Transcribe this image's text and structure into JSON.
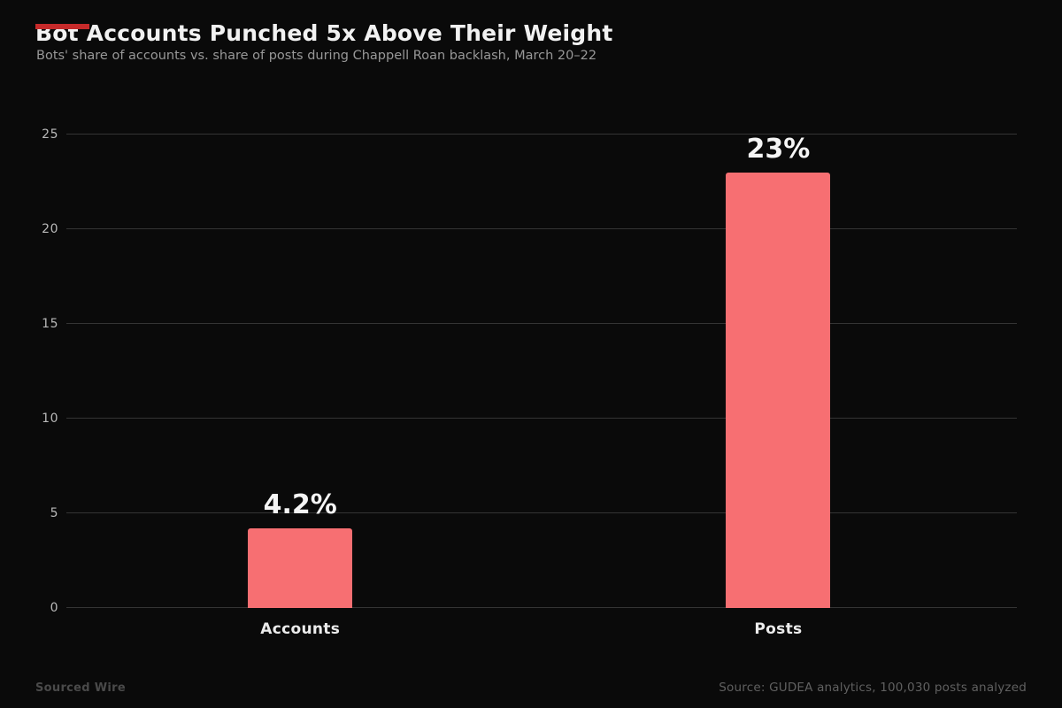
{
  "header": {
    "title": "Bot Accounts Punched 5x Above Their Weight",
    "subtitle": "Bots' share of accounts vs. share of posts during Chappell Roan backlash, March 20–22"
  },
  "footer": {
    "brand": "Sourced Wire",
    "source": "Source: GUDEA analytics, 100,030 posts analyzed"
  },
  "colors": {
    "background": "#0a0a0a",
    "bar": "#f76f72",
    "accent_stripe": "#c62a2a",
    "gridline": "#343434",
    "tick_text": "#b9b9b9",
    "value_text": "#f5f5f5"
  },
  "chart_data": {
    "type": "bar",
    "title": "Bot Accounts Punched 5x Above Their Weight",
    "subtitle": "Bots' share of accounts vs. share of posts during Chappell Roan backlash, March 20–22",
    "categories": [
      "Accounts",
      "Posts"
    ],
    "values": [
      4.2,
      23
    ],
    "value_labels": [
      "4.2%",
      "23%"
    ],
    "xlabel": "",
    "ylabel": "",
    "ylim": [
      0,
      25
    ],
    "yticks": [
      0,
      5,
      10,
      15,
      20,
      25
    ],
    "grid": true,
    "legend": false,
    "bar_color": "#f76f72",
    "value_label_position": "above-bar"
  }
}
